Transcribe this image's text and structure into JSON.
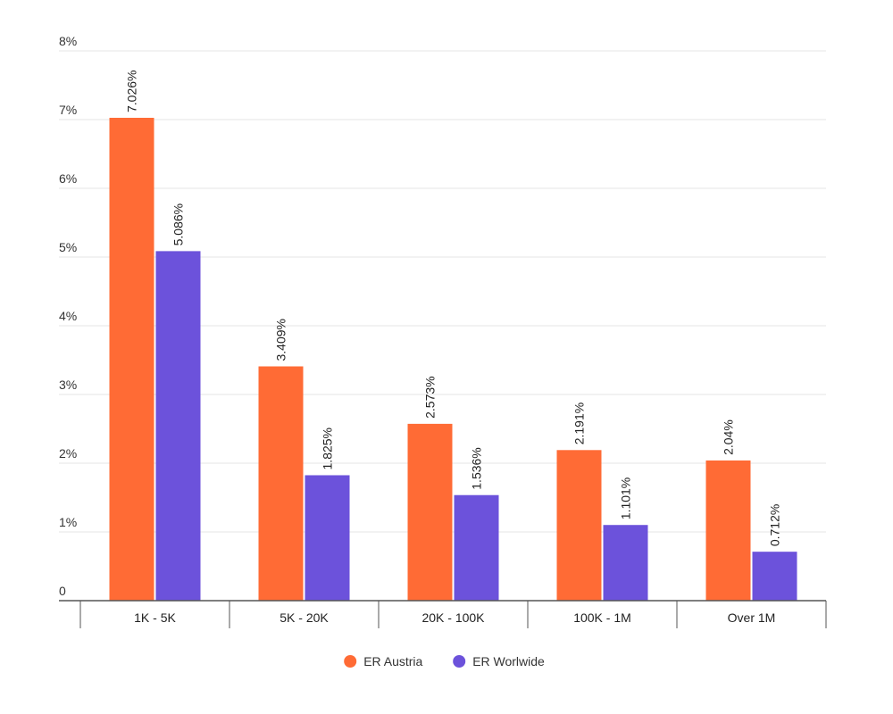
{
  "chart_data": {
    "type": "bar",
    "title": "",
    "xlabel": "",
    "ylabel": "",
    "categories": [
      "1K - 5K",
      "5K - 20K",
      "20K - 100K",
      "100K - 1M",
      "Over 1M"
    ],
    "series": [
      {
        "name": "ER Austria",
        "color": "#FF6B35",
        "values": [
          7.026,
          3.409,
          2.573,
          2.191,
          2.04
        ],
        "labels": [
          "7.026%",
          "3.409%",
          "2.573%",
          "2.191%",
          "2.04%"
        ]
      },
      {
        "name": "ER Worlwide",
        "color": "#6C52DB",
        "values": [
          5.086,
          1.825,
          1.536,
          1.101,
          0.712
        ],
        "labels": [
          "5.086%",
          "1.825%",
          "1.536%",
          "1.101%",
          "0.712%"
        ]
      }
    ],
    "ylim": [
      0,
      8
    ],
    "yticks": [
      0,
      1,
      2,
      3,
      4,
      5,
      6,
      7,
      8
    ],
    "ytick_labels": [
      "0",
      "1%",
      "2%",
      "3%",
      "4%",
      "5%",
      "6%",
      "7%",
      "8%"
    ],
    "grid": true,
    "legend": "bottom"
  }
}
